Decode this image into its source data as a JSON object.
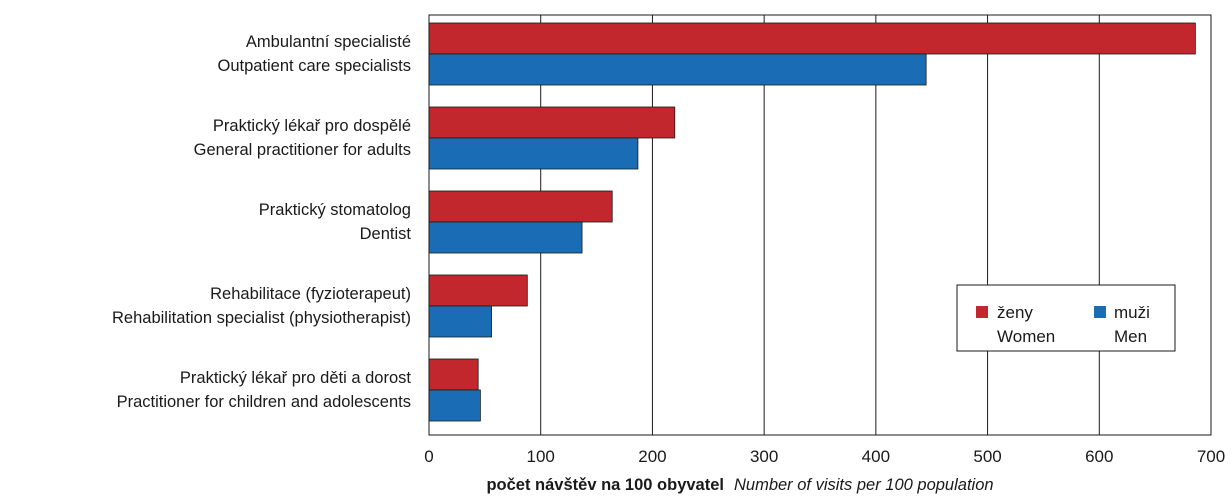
{
  "chart_data": {
    "type": "bar",
    "orientation": "horizontal",
    "categories": [
      {
        "cz": "Ambulantní specialisté",
        "en": "Outpatient care specialists"
      },
      {
        "cz": "Praktický lékař pro dospělé",
        "en": "General practitioner for adults"
      },
      {
        "cz": "Praktický stomatolog",
        "en": "Dentist"
      },
      {
        "cz": "Rehabilitace (fyzioterapeut)",
        "en": "Rehabilitation specialist (physiotherapist)"
      },
      {
        "cz": "Praktický lékař pro děti a dorost",
        "en": "Practitioner for children and adolescents"
      }
    ],
    "series": [
      {
        "name_cz": "ženy",
        "name_en": "Women",
        "color": "#c1272d",
        "values": [
          686,
          220,
          164,
          88,
          44
        ]
      },
      {
        "name_cz": "muži",
        "name_en": "Men",
        "color": "#1a6db5",
        "values": [
          445,
          187,
          137,
          56,
          46
        ]
      }
    ],
    "xlim": [
      0,
      700
    ],
    "xticks": [
      0,
      100,
      200,
      300,
      400,
      500,
      600,
      700
    ],
    "xlabel_cz": "počet návštěv na 100 obyvatel",
    "xlabel_en": "Number of visits per 100 population",
    "grid": "vertical",
    "legend_position": "bottom-right"
  }
}
